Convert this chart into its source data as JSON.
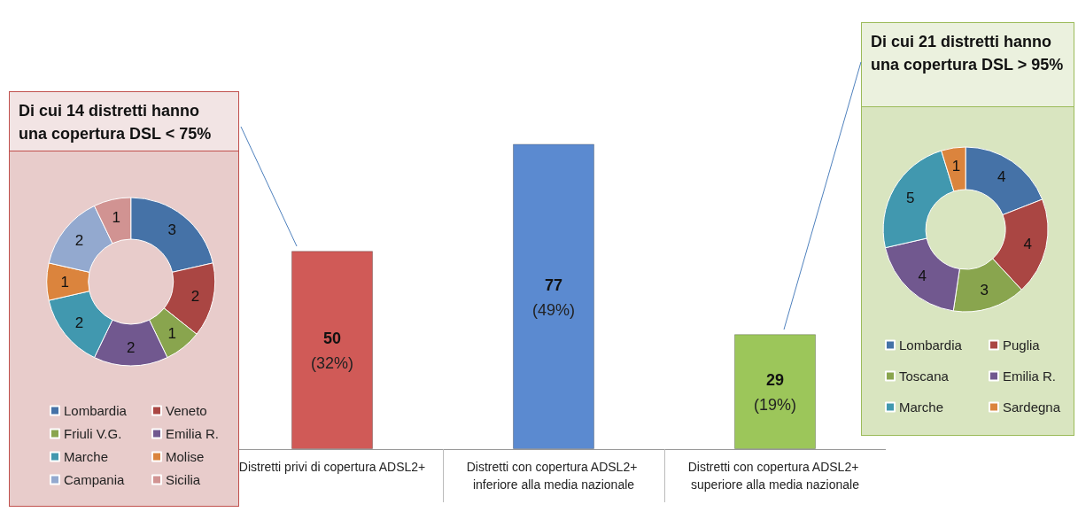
{
  "chart_data": [
    {
      "type": "donut",
      "title": "Di cui 14 distretti hanno una copertura DSL < 75%",
      "categories": [
        "Lombardia",
        "Veneto",
        "Friuli V.G.",
        "Emilia R.",
        "Marche",
        "Molise",
        "Campania",
        "Sicilia"
      ],
      "values": [
        3,
        2,
        1,
        2,
        2,
        1,
        2,
        1
      ],
      "colors": [
        "#4572a7",
        "#aa4643",
        "#89a54e",
        "#71588f",
        "#4198af",
        "#db843d",
        "#93a9cf",
        "#d19392"
      ],
      "data_labels": true,
      "legend": "bottom"
    },
    {
      "type": "bar",
      "categories": [
        "Distretti privi di copertura ADSL2+",
        "Distretti con copertura ADSL2+ inferiore alla media nazionale",
        "Distretti con copertura ADSL2+ superiore alla media nazionale"
      ],
      "values": [
        50,
        77,
        29
      ],
      "colors": [
        "#d05a57",
        "#5b8ad0",
        "#9cc65a"
      ],
      "value_labels": [
        "50 (32%)",
        "77 (49%)",
        "29 (19%)"
      ]
    },
    {
      "type": "donut",
      "title": "Di cui 21 distretti hanno una copertura DSL > 95%",
      "categories": [
        "Lombardia",
        "Puglia",
        "Toscana",
        "Emilia R.",
        "Marche",
        "Sardegna"
      ],
      "values": [
        4,
        4,
        3,
        4,
        5,
        1
      ],
      "colors": [
        "#4572a7",
        "#aa4643",
        "#89a54e",
        "#71588f",
        "#4198af",
        "#db843d"
      ],
      "data_labels": true,
      "legend": "bottom"
    }
  ]
}
